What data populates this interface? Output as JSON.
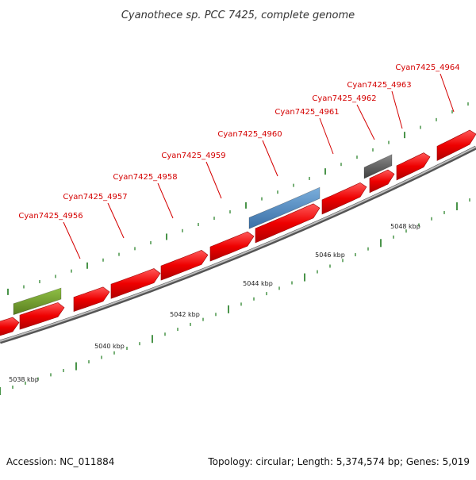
{
  "title": "Cyanothece sp. PCC 7425, complete genome",
  "footer": {
    "accession": "Accession: NC_011884",
    "summary": "Topology: circular; Length: 5,374,574 bp; Genes: 5,019"
  },
  "colors": {
    "cds_forward": "#ee0000",
    "backbone": "#888888",
    "feature_green": "#6e9a2a",
    "feature_blue": "#4e86c0",
    "feature_gray": "#555555",
    "tick": "#1c7a1c",
    "label": "#d40000"
  },
  "gene_labels": [
    {
      "label": "Cyan7425_4956"
    },
    {
      "label": "Cyan7425_4957"
    },
    {
      "label": "Cyan7425_4958"
    },
    {
      "label": "Cyan7425_4959"
    },
    {
      "label": "Cyan7425_4960"
    },
    {
      "label": "Cyan7425_4961"
    },
    {
      "label": "Cyan7425_4962"
    },
    {
      "label": "Cyan7425_4963"
    },
    {
      "label": "Cyan7425_4964"
    }
  ],
  "scale_labels": [
    {
      "label": "5038 kbp",
      "position_kbp": 5038
    },
    {
      "label": "5040 kbp",
      "position_kbp": 5040
    },
    {
      "label": "5042 kbp",
      "position_kbp": 5042
    },
    {
      "label": "5044 kbp",
      "position_kbp": 5044
    },
    {
      "label": "5046 kbp",
      "position_kbp": 5046
    },
    {
      "label": "5048 kbp",
      "position_kbp": 5048
    }
  ]
}
